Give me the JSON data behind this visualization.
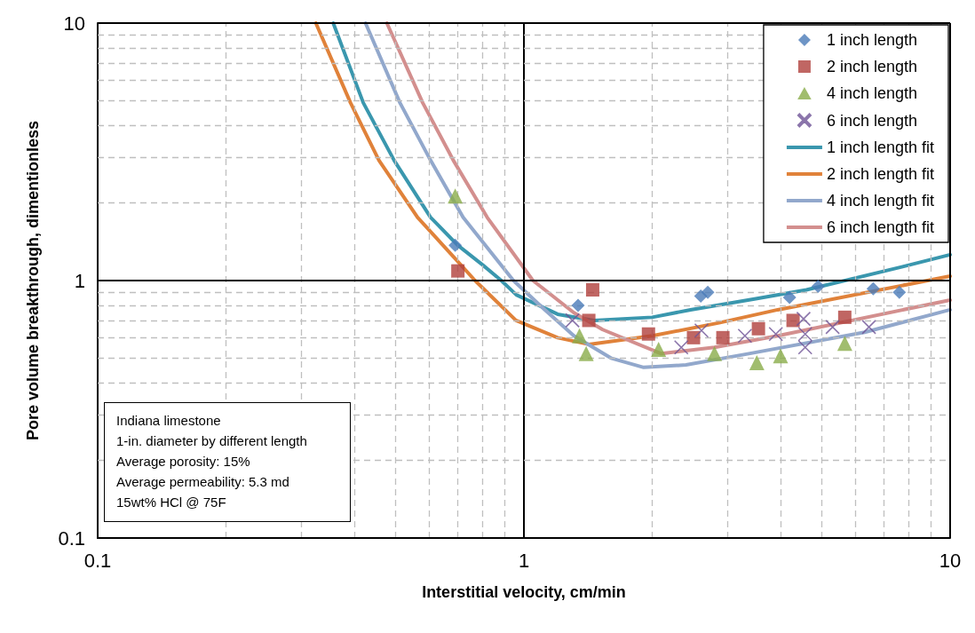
{
  "chart_data": {
    "type": "scatter",
    "xlabel": "Interstitial velocity, cm/min",
    "ylabel": "Pore volume breakthrough, dimentionless",
    "log": "xy",
    "xlim": [
      0.1,
      10
    ],
    "ylim": [
      0.1,
      10
    ],
    "xticks": [
      0.1,
      1,
      10
    ],
    "yticks": [
      0.1,
      1,
      10
    ],
    "grid": true,
    "legend": "top right",
    "annotations": [
      "Indiana limestone",
      "1-in. diameter by different length",
      "Average porosity: 15%",
      "Average permeability: 5.3 md",
      "15wt% HCl @ 75F"
    ],
    "series": [
      {
        "name": "1 inch length",
        "marker": "diamond",
        "color": "#4a7ab8",
        "x": [
          0.69,
          1.34,
          2.6,
          2.7,
          4.2,
          4.9,
          6.6,
          7.6
        ],
        "values": [
          1.37,
          0.8,
          0.87,
          0.9,
          0.86,
          0.95,
          0.93,
          0.9
        ]
      },
      {
        "name": "2 inch length",
        "marker": "square",
        "color": "#b0403c",
        "x": [
          0.7,
          1.45,
          1.42,
          1.96,
          2.5,
          2.93,
          3.55,
          4.28,
          5.66
        ],
        "values": [
          1.09,
          0.92,
          0.7,
          0.62,
          0.6,
          0.6,
          0.65,
          0.7,
          0.72
        ]
      },
      {
        "name": "4 inch length",
        "marker": "triangle",
        "color": "#8aac4a",
        "x": [
          0.69,
          1.35,
          1.4,
          2.07,
          2.8,
          3.52,
          4.0,
          5.66
        ],
        "values": [
          2.13,
          0.61,
          0.52,
          0.54,
          0.52,
          0.48,
          0.51,
          0.57
        ]
      },
      {
        "name": "6 inch length",
        "marker": "cross",
        "color": "#6e5296",
        "x": [
          1.3,
          2.34,
          2.61,
          3.3,
          3.9,
          4.53,
          4.57,
          4.57,
          5.3,
          6.45
        ],
        "values": [
          0.7,
          0.55,
          0.64,
          0.61,
          0.62,
          0.71,
          0.62,
          0.55,
          0.66,
          0.66
        ]
      },
      {
        "name": "1 inch length fit",
        "type": "line",
        "marker": "none",
        "color": "#3a97ae",
        "x": [
          0.357,
          0.42,
          0.496,
          0.604,
          0.7,
          0.8,
          0.885,
          0.96,
          1.2,
          1.46,
          2,
          2.46,
          3.5,
          4.6,
          7.7,
          10
        ],
        "values": [
          10,
          4.9,
          2.93,
          1.76,
          1.37,
          1.15,
          1.0,
          0.88,
          0.74,
          0.7,
          0.72,
          0.77,
          0.85,
          0.92,
          1.13,
          1.26
        ]
      },
      {
        "name": "2 inch length fit",
        "type": "line",
        "marker": "none",
        "color": "#e0823a",
        "x": [
          0.325,
          0.392,
          0.457,
          0.563,
          0.768,
          0.958,
          1.2,
          1.42,
          2,
          2.87,
          3.94,
          10
        ],
        "values": [
          10,
          4.9,
          2.93,
          1.76,
          1.0,
          0.7,
          0.6,
          0.565,
          0.61,
          0.685,
          0.77,
          1.04
        ]
      },
      {
        "name": "4 inch length fit",
        "type": "line",
        "marker": "none",
        "color": "#92a8cc",
        "x": [
          0.425,
          0.512,
          0.604,
          0.72,
          0.945,
          1.12,
          1.31,
          1.6,
          1.91,
          2.4,
          3.37,
          6.3,
          10
        ],
        "values": [
          10,
          4.9,
          2.93,
          1.76,
          1.0,
          0.77,
          0.61,
          0.5,
          0.46,
          0.47,
          0.52,
          0.63,
          0.77
        ]
      },
      {
        "name": "6 inch length fit",
        "type": "line",
        "marker": "none",
        "color": "#d38f8e",
        "x": [
          0.477,
          0.579,
          0.683,
          0.82,
          1.05,
          1.12,
          1.31,
          1.53,
          2.1,
          2.8,
          3.94,
          10
        ],
        "values": [
          10,
          4.9,
          2.93,
          1.76,
          1.0,
          0.92,
          0.75,
          0.645,
          0.52,
          0.55,
          0.61,
          0.84
        ]
      }
    ]
  }
}
